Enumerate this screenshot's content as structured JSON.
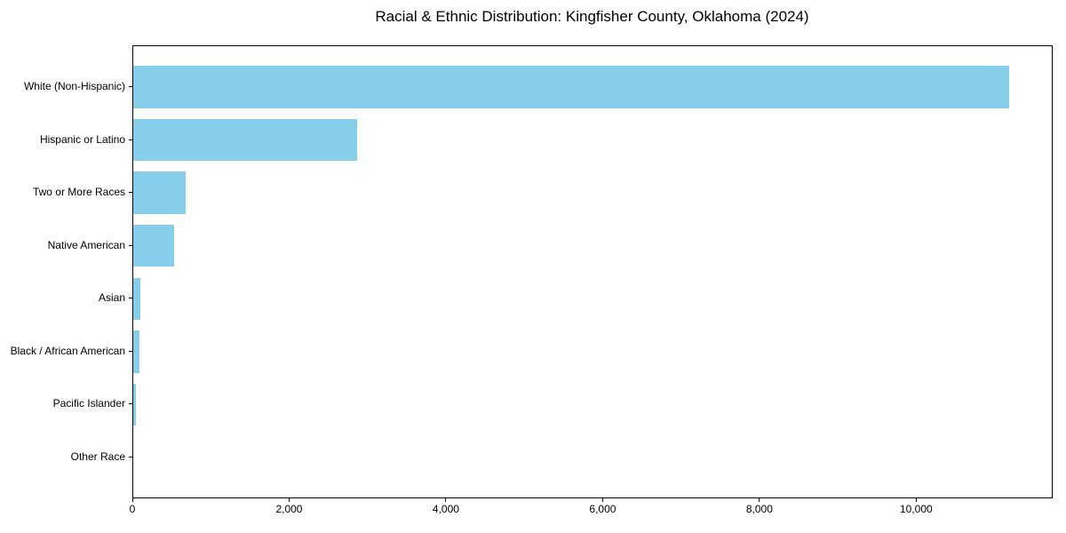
{
  "chart_data": {
    "type": "bar",
    "orientation": "horizontal",
    "title": "Racial & Ethnic Distribution: Kingfisher County, Oklahoma (2024)",
    "categories": [
      "White (Non-Hispanic)",
      "Hispanic or Latino",
      "Two or More Races",
      "Native American",
      "Asian",
      "Black / African American",
      "Pacific Islander",
      "Other Race"
    ],
    "values": [
      11180,
      2860,
      670,
      520,
      85,
      80,
      30,
      0
    ],
    "bar_color": "#87CEEB",
    "xlabel": "",
    "ylabel": "",
    "xlim": [
      0,
      11730
    ],
    "xticks": [
      0,
      2000,
      4000,
      6000,
      8000,
      10000
    ],
    "xtick_labels": [
      "0",
      "2,000",
      "4,000",
      "6,000",
      "8,000",
      "10,000"
    ],
    "grid": false,
    "legend": null,
    "axis_color": "#000000",
    "background_color": "#ffffff"
  }
}
